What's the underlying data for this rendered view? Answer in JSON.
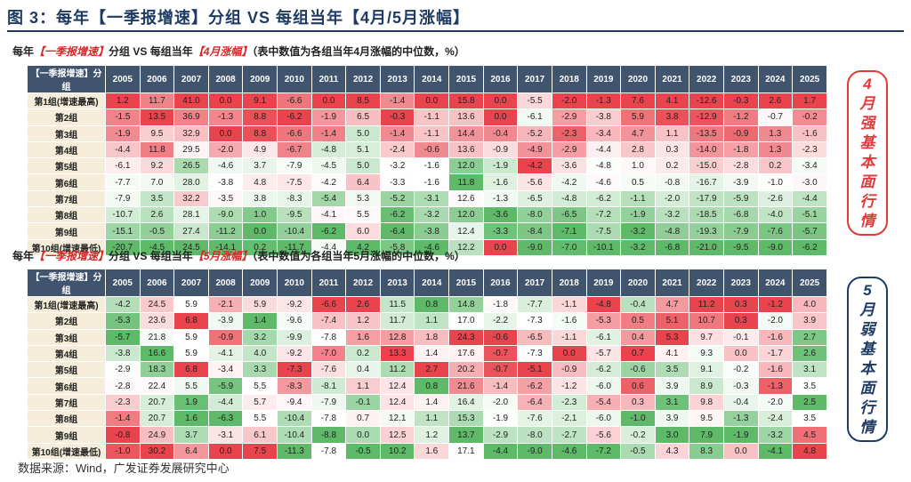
{
  "figure_title": "图 3：每年【一季报增速】分组 VS 每组当年【4月/5月涨幅】",
  "source": "数据来源：Wind，广发证券发展研究中心",
  "chart_data": [
    {
      "type": "heatmap",
      "subtitle_prefix": "每年",
      "subtitle_highlight1": "【一季报增速】",
      "subtitle_mid": "分组 VS 每组当年",
      "subtitle_highlight2": "【4月涨幅】",
      "subtitle_suffix": "（表中数值为各组当年4月涨幅的中位数，%）",
      "corner_label": "【一季报增速】分组",
      "years": [
        "2005",
        "2006",
        "2007",
        "2008",
        "2009",
        "2010",
        "2011",
        "2012",
        "2013",
        "2014",
        "2015",
        "2016",
        "2017",
        "2018",
        "2019",
        "2020",
        "2021",
        "2022",
        "2023",
        "2024",
        "2025"
      ],
      "groups": [
        "第1组(增速最高)",
        "第2组",
        "第3组",
        "第4组",
        "第5组",
        "第6组",
        "第7组",
        "第8组",
        "第9组",
        "第10组(增速最低)"
      ],
      "values": [
        [
          "1.2",
          "11.7",
          "41.0",
          "0.0",
          "9.1",
          "-6.6",
          "0.0",
          "8.5",
          "-1.4",
          "0.0",
          "15.8",
          "0.0",
          "-5.5",
          "-2.0",
          "-1.3",
          "7.6",
          "4.1",
          "-12.6",
          "-0.3",
          "2.6",
          "1.7"
        ],
        [
          "-1.5",
          "13.5",
          "36.9",
          "-1.3",
          "8.8",
          "-6.2",
          "-1.9",
          "6.5",
          "-0.3",
          "-1.1",
          "13.6",
          "0.0",
          "-6.1",
          "-2.9",
          "-3.8",
          "5.9",
          "3.8",
          "-12.9",
          "-1.2",
          "-0.7",
          "-0.2"
        ],
        [
          "-1.9",
          "9.5",
          "32.9",
          "0.0",
          "8.8",
          "-6.6",
          "-1.4",
          "5.0",
          "-1.4",
          "-1.1",
          "14.4",
          "-0.4",
          "-5.2",
          "-2.3",
          "-3.4",
          "4.7",
          "1.1",
          "-13.5",
          "-0.9",
          "1.3",
          "-1.6"
        ],
        [
          "-4.4",
          "11.8",
          "29.5",
          "-2.0",
          "4.9",
          "-6.7",
          "-4.8",
          "5.1",
          "-2.4",
          "-0.6",
          "13.6",
          "-0.9",
          "-4.9",
          "-2.9",
          "-4.4",
          "2.8",
          "0.3",
          "-14.0",
          "-1.8",
          "1.3",
          "-2.3"
        ],
        [
          "-6.1",
          "9.2",
          "26.5",
          "-4.6",
          "3.7",
          "-7.9",
          "-4.5",
          "5.0",
          "-3.2",
          "-1.6",
          "12.0",
          "-1.9",
          "-4.2",
          "-3.6",
          "-4.8",
          "1.0",
          "0.2",
          "-15.0",
          "-2.8",
          "0.2",
          "-3.4"
        ],
        [
          "-7.7",
          "7.0",
          "28.0",
          "-3.8",
          "4.8",
          "-7.5",
          "-4.2",
          "6.4",
          "-3.3",
          "-1.6",
          "11.8",
          "-1.6",
          "-5.6",
          "-4.2",
          "-4.6",
          "0.5",
          "-0.8",
          "-16.7",
          "-3.9",
          "-1.0",
          "-3.0"
        ],
        [
          "-7.9",
          "3.5",
          "32.2",
          "-3.5",
          "3.8",
          "-8.3",
          "-5.4",
          "5.3",
          "-5.2",
          "-3.1",
          "12.6",
          "-1.3",
          "-6.5",
          "-4.8",
          "-6.2",
          "-1.1",
          "-2.0",
          "-17.9",
          "-5.9",
          "-2.6",
          "-4.4"
        ],
        [
          "-10.7",
          "2.6",
          "28.1",
          "-9.0",
          "1.0",
          "-9.5",
          "-4.1",
          "5.5",
          "-6.2",
          "-3.2",
          "12.0",
          "-3.6",
          "-8.0",
          "-6.5",
          "-7.2",
          "-1.9",
          "-3.2",
          "-18.5",
          "-6.8",
          "-4.0",
          "-5.1"
        ],
        [
          "-15.1",
          "-0.5",
          "27.4",
          "-11.2",
          "0.0",
          "-10.4",
          "-6.2",
          "6.0",
          "-6.4",
          "-3.8",
          "12.4",
          "-3.3",
          "-8.4",
          "-7.1",
          "-7.5",
          "-3.2",
          "-4.8",
          "-19.3",
          "-7.9",
          "-7.6",
          "-5.7"
        ],
        [
          "-20.7",
          "-4.5",
          "24.5",
          "-14.1",
          "0.2",
          "-11.7",
          "-4.4",
          "4.2",
          "-5.8",
          "-4.6",
          "12.2",
          "0.0",
          "-9.0",
          "-7.0",
          "-10.1",
          "-3.2",
          "-6.8",
          "-21.0",
          "-9.5",
          "-9.0",
          "-6.2"
        ]
      ],
      "side_label": [
        "4",
        "月",
        "强",
        "基",
        "本",
        "面",
        "行",
        "情"
      ],
      "side_color": "#e03a3a"
    },
    {
      "type": "heatmap",
      "subtitle_prefix": "每年",
      "subtitle_highlight1": "【一季报增速】",
      "subtitle_mid": "分组 VS 每组当年",
      "subtitle_highlight2": "【5月涨幅】",
      "subtitle_suffix": "（表中数值为各组当年5月涨幅的中位数，%）",
      "corner_label": "【一季报增速】分组",
      "years": [
        "2005",
        "2006",
        "2007",
        "2008",
        "2009",
        "2010",
        "2011",
        "2012",
        "2013",
        "2014",
        "2015",
        "2016",
        "2017",
        "2018",
        "2019",
        "2020",
        "2021",
        "2022",
        "2023",
        "2024",
        "2025"
      ],
      "groups": [
        "第1组(增速最高)",
        "第2组",
        "第3组",
        "第4组",
        "第5组",
        "第6组",
        "第7组",
        "第8组",
        "第9组",
        "第10组(增速最低)"
      ],
      "values": [
        [
          "-4.2",
          "24.5",
          "5.9",
          "-2.1",
          "5.9",
          "-9.2",
          "-6.6",
          "2.6",
          "11.5",
          "0.8",
          "14.8",
          "-1.8",
          "-7.7",
          "-1.1",
          "-4.8",
          "-0.4",
          "4.7",
          "11.2",
          "0.3",
          "-1.2",
          "4.0"
        ],
        [
          "-5.3",
          "23.6",
          "6.8",
          "-3.9",
          "1.4",
          "-9.6",
          "-7.4",
          "1.2",
          "11.7",
          "1.1",
          "17.0",
          "-2.2",
          "-7.3",
          "-1.6",
          "-5.3",
          "0.5",
          "5.1",
          "10.7",
          "0.3",
          "-2.0",
          "3.9"
        ],
        [
          "-5.7",
          "21.8",
          "5.9",
          "-0.9",
          "3.2",
          "-9.9",
          "-7.8",
          "1.6",
          "12.8",
          "1.8",
          "24.3",
          "-0.6",
          "-6.5",
          "-1.1",
          "-6.1",
          "0.4",
          "5.3",
          "9.7",
          "-0.1",
          "-1.6",
          "2.7"
        ],
        [
          "-3.8",
          "16.6",
          "5.9",
          "-4.1",
          "4.0",
          "-9.2",
          "-7.0",
          "0.2",
          "13.3",
          "1.4",
          "17.6",
          "-0.7",
          "-7.3",
          "0.0",
          "-5.7",
          "0.7",
          "4.1",
          "9.3",
          "0.0",
          "-1.7",
          "2.6"
        ],
        [
          "-2.9",
          "18.3",
          "6.8",
          "-3.4",
          "3.3",
          "-7.3",
          "-7.6",
          "0.4",
          "11.2",
          "2.7",
          "20.2",
          "-0.7",
          "-5.1",
          "-0.9",
          "-6.2",
          "-0.6",
          "3.5",
          "9.1",
          "-0.2",
          "-1.6",
          "3.1"
        ],
        [
          "-2.8",
          "22.4",
          "5.5",
          "-5.9",
          "5.5",
          "-8.3",
          "-8.1",
          "1.1",
          "12.4",
          "0.8",
          "21.6",
          "-1.4",
          "-6.2",
          "-1.2",
          "-6.0",
          "0.6",
          "3.9",
          "8.9",
          "-0.3",
          "-1.3",
          "3.5"
        ],
        [
          "-2.3",
          "20.7",
          "1.9",
          "-4.4",
          "5.7",
          "-9.4",
          "-7.9",
          "-0.1",
          "12.4",
          "1.4",
          "16.4",
          "-2.0",
          "-6.4",
          "-2.3",
          "-5.4",
          "0.3",
          "3.1",
          "9.8",
          "-0.4",
          "-2.0",
          "2.5"
        ],
        [
          "-1.4",
          "20.7",
          "1.6",
          "-6.3",
          "5.5",
          "-10.4",
          "-7.8",
          "0.7",
          "12.1",
          "1.1",
          "15.3",
          "-1.9",
          "-7.6",
          "-2.1",
          "-6.0",
          "-1.0",
          "3.9",
          "9.5",
          "-1.3",
          "-2.4",
          "3.5"
        ],
        [
          "-0.8",
          "24.9",
          "3.7",
          "-3.1",
          "6.1",
          "-10.4",
          "-8.8",
          "0.0",
          "12.5",
          "1.2",
          "13.7",
          "-2.9",
          "-8.0",
          "-2.7",
          "-5.6",
          "-0.2",
          "3.0",
          "7.9",
          "-1.9",
          "-3.2",
          "4.5"
        ],
        [
          "-1.0",
          "30.2",
          "6.4",
          "0.0",
          "7.5",
          "-11.3",
          "-7.8",
          "-0.5",
          "10.2",
          "1.6",
          "17.1",
          "-4.4",
          "-9.0",
          "-4.6",
          "-7.2",
          "-0.5",
          "4.3",
          "8.3",
          "0.0",
          "-4.1",
          "4.8"
        ]
      ],
      "side_label": [
        "5",
        "月",
        "弱",
        "基",
        "本",
        "面",
        "行",
        "情"
      ],
      "side_color": "#1f3a63"
    }
  ]
}
